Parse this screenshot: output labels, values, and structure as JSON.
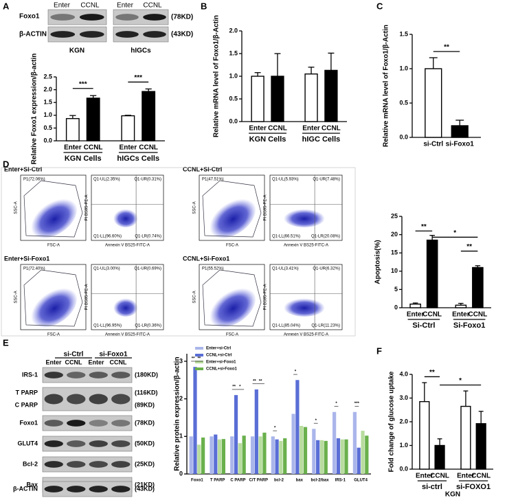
{
  "panel_labels": [
    "A",
    "B",
    "C",
    "D",
    "E",
    "F"
  ],
  "blot_a": {
    "rows": [
      "Foxo1",
      "β-ACTIN"
    ],
    "sizes": [
      "(78KD)",
      "(43KD)"
    ],
    "lanes": [
      "Enter",
      "CCNL",
      "Enter",
      "CCNL"
    ],
    "cells": [
      "KGN",
      "hIGCs"
    ]
  },
  "flow": {
    "axes": {
      "fsc": "FSC-A",
      "ssc": "SSC-A",
      "annexin": "Annexin V BS25-FITC-A",
      "pi": "PI BS95-PE-A"
    },
    "plots": [
      {
        "title": "Enter+Si-Ctrl",
        "gate": "P1(72.06%)",
        "quadrants": [
          "Q1-UL(2.35%)",
          "Q1-UR(0.31%)",
          "Q1-LL(96.60%)",
          "Q1-LR(0.74%)"
        ]
      },
      {
        "title": "CCNL+Si-Ctrl",
        "gate": "P1(47.51%)",
        "quadrants": [
          "Q1-UL(5.93%)",
          "Q1-UR(7.48%)",
          "Q1-LL(66.51%)",
          "Q1-LR(20.08%)"
        ]
      },
      {
        "title": "Enter+Si-Foxo1",
        "gate": "P1(72.40%)",
        "quadrants": [
          "Q1-UL(3.00%)",
          "Q1-UR(0.69%)",
          "Q1-LL(96.95%)",
          "Q1-LR(0.36%)"
        ]
      },
      {
        "title": "CCNL+Si-Foxo1",
        "gate": "P1(55.52%)",
        "quadrants": [
          "Q1-UL(3.41%)",
          "Q1-UR(6.32%)",
          "Q1-LL(85.04%)",
          "Q1-LR(11.23%)"
        ]
      }
    ]
  },
  "blot_e": {
    "groups": [
      "si-Ctrl",
      "si-Foxo1"
    ],
    "lanes": [
      "Enter",
      "CCNL",
      "Enter",
      "CCNL"
    ],
    "rows": [
      {
        "name": "IRS-1",
        "size": "(180KD)"
      },
      {
        "name": "T PARP",
        "size": "(116KD)"
      },
      {
        "name": "C PARP",
        "size": "(89KD)"
      },
      {
        "name": "Foxo1",
        "size": "(78KD)"
      },
      {
        "name": "GLUT4",
        "size": "(50KD)"
      },
      {
        "name": "Bcl-2",
        "size": "(25KD)"
      },
      {
        "name": "Bax",
        "size": "(21KD)"
      },
      {
        "name": "β-ACTIN",
        "size": "(43KD)"
      }
    ]
  },
  "chart_data": [
    {
      "type": "bar",
      "ylabel": "Relative Foxo1 expression/β-actin",
      "categories": [
        "Enter",
        "CCNL",
        "Enter",
        "CCNL"
      ],
      "groups": [
        "KGN Cells",
        "hIGCs Cells"
      ],
      "values": [
        0.87,
        1.67,
        0.98,
        1.93
      ],
      "errors": [
        0.12,
        0.1,
        0.02,
        0.1
      ],
      "colors": [
        "#ffffff",
        "#000000",
        "#ffffff",
        "#000000"
      ],
      "ylim": [
        0,
        2.5
      ],
      "yticks": [
        {
          "value": 0,
          "label": "0.0"
        },
        {
          "value": 0.5,
          "label": "0.5"
        },
        {
          "value": 1,
          "label": "1.0"
        },
        {
          "value": 1.5,
          "label": "1.5"
        },
        {
          "value": 2,
          "label": "2.0"
        },
        {
          "value": 2.5,
          "label": "2.5"
        }
      ],
      "annotations": [
        "***",
        "***"
      ]
    },
    {
      "type": "bar",
      "ylabel": "Relative mRNA level of Foxo1/β-Actin",
      "categories": [
        "Enter",
        "CCNL",
        "Enter",
        "CCNL"
      ],
      "groups": [
        "KGN Cells",
        "hIGC Cells"
      ],
      "values": [
        1.0,
        1.0,
        1.05,
        1.13
      ],
      "errors": [
        0.08,
        0.5,
        0.15,
        0.38
      ],
      "colors": [
        "#ffffff",
        "#000000",
        "#ffffff",
        "#000000"
      ],
      "ylim": [
        0,
        2
      ],
      "yticks": [
        {
          "value": 0,
          "label": "0.0"
        },
        {
          "value": 0.5,
          "label": "0.5"
        },
        {
          "value": 1,
          "label": "1.0"
        },
        {
          "value": 1.5,
          "label": "1.5"
        },
        {
          "value": 2,
          "label": "2.0"
        }
      ],
      "annotations": []
    },
    {
      "type": "bar",
      "ylabel": "Relative mRNA level of Foxo1/β-Actin",
      "categories": [
        "si-Ctrl",
        "si-Foxo1"
      ],
      "groups": [],
      "values": [
        1.0,
        0.17
      ],
      "errors": [
        0.16,
        0.08
      ],
      "colors": [
        "#ffffff",
        "#000000"
      ],
      "ylim": [
        0,
        1.5
      ],
      "yticks": [
        {
          "value": 0,
          "label": "0.0"
        },
        {
          "value": 0.5,
          "label": "0.5"
        },
        {
          "value": 1,
          "label": "1.0"
        },
        {
          "value": 1.5,
          "label": "1.5"
        }
      ],
      "annotations": [
        "**"
      ]
    },
    {
      "type": "bar",
      "ylabel": "Apoptosis(%)",
      "categories": [
        "Enter",
        "CCNL",
        "Enter",
        "CCNL"
      ],
      "groups": [
        "Si-Ctrl",
        "Si-Foxo1"
      ],
      "values": [
        1.0,
        18.5,
        0.7,
        11.0
      ],
      "errors": [
        0.3,
        1.3,
        0.5,
        0.5
      ],
      "colors": [
        "#ffffff",
        "#000000",
        "#ffffff",
        "#000000"
      ],
      "ylim": [
        0,
        25
      ],
      "yticks": [
        0,
        5,
        10,
        15,
        20,
        25
      ],
      "annotations": [
        "**",
        "*",
        "**"
      ]
    },
    {
      "type": "grouped_bar",
      "ylabel": "Relative protein expression/β-actin",
      "categories": [
        "Foxo1",
        "T PARP",
        "C PARP",
        "C/T PARP",
        "bcl-2",
        "bax",
        "bcl-2/bax",
        "IRS-1",
        "GLUT4"
      ],
      "series": [
        {
          "name": "Enter+si-Ctrl",
          "color": "#aab6ea",
          "values": [
            1.0,
            1.0,
            1.0,
            1.0,
            1.0,
            1.6,
            1.2,
            1.65,
            1.65
          ]
        },
        {
          "name": "CCNL+si-Ctrl",
          "color": "#5a6ed6",
          "values": [
            2.85,
            1.05,
            2.1,
            2.25,
            0.92,
            2.5,
            0.9,
            0.95,
            0.7
          ]
        },
        {
          "name": "Enter+si-Foxo1",
          "color": "#b8dc9e",
          "values": [
            0.78,
            0.92,
            0.82,
            1.0,
            0.88,
            1.28,
            0.9,
            0.92,
            1.15
          ]
        },
        {
          "name": "CCNL+si-Foxo1",
          "color": "#6ab04c",
          "values": [
            0.97,
            0.93,
            1.02,
            1.1,
            0.95,
            1.25,
            0.88,
            0.92,
            1.02
          ]
        }
      ],
      "ylim": [
        0,
        3.2
      ],
      "yticks": [
        0,
        1,
        2,
        3
      ],
      "annotations": [
        "**",
        "**",
        "**",
        "*",
        "**",
        "**",
        "*",
        "*",
        "*",
        "*",
        "***"
      ]
    },
    {
      "type": "bar",
      "ylabel": "Fold change of  glucose uptake",
      "xlabel": "KGN",
      "categories": [
        "Enter",
        "CCNL",
        "Enter",
        "CCNL"
      ],
      "groups": [
        "si-ctrl",
        "si-FOXO1"
      ],
      "values": [
        2.85,
        1.0,
        2.65,
        1.92
      ],
      "errors": [
        0.8,
        0.28,
        0.65,
        0.52
      ],
      "colors": [
        "#ffffff",
        "#000000",
        "#ffffff",
        "#000000"
      ],
      "ylim": [
        0,
        4
      ],
      "yticks": [
        {
          "value": 0,
          "label": "0.0"
        },
        {
          "value": 1,
          "label": "1.0"
        },
        {
          "value": 2,
          "label": "2.0"
        },
        {
          "value": 3,
          "label": "3.0"
        },
        {
          "value": 4,
          "label": "4.0"
        }
      ],
      "annotations": [
        "**",
        "*"
      ]
    }
  ]
}
